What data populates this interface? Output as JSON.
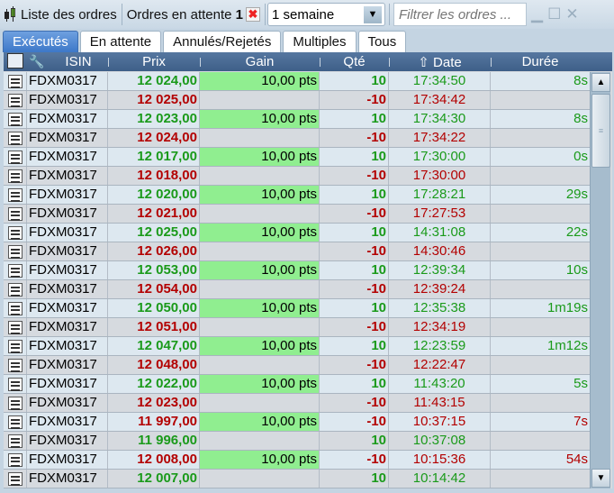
{
  "toolbar": {
    "title": "Liste des ordres",
    "pending_label": "Ordres en attente",
    "pending_count": "1",
    "period": "1 semaine",
    "filter_placeholder": "Filtrer les ordres ..."
  },
  "tabs": [
    {
      "label": "Exécutés",
      "active": true
    },
    {
      "label": "En attente"
    },
    {
      "label": "Annulés/Rejetés"
    },
    {
      "label": "Multiples"
    },
    {
      "label": "Tous"
    }
  ],
  "columns": {
    "isin": "ISIN",
    "prix": "Prix",
    "gain": "Gain",
    "qte": "Qté",
    "date": "Date",
    "duree": "Durée"
  },
  "sort": {
    "column": "Date",
    "direction": "up"
  },
  "colors": {
    "green": "#1a9a1a",
    "red": "#b30000",
    "gain_bg": "#90ee90",
    "header": "#4a6a94",
    "active_tab": "#4a84d0"
  },
  "rows": [
    {
      "isin": "FDXM0317",
      "prix": "12 024,00",
      "pc": "g",
      "gain": "10,00 pts",
      "qte": "10",
      "qc": "g",
      "date": "17:34:50",
      "dc": "g",
      "duree": "8s"
    },
    {
      "isin": "FDXM0317",
      "prix": "12 025,00",
      "pc": "r",
      "gain": "",
      "qte": "-10",
      "qc": "r",
      "date": "17:34:42",
      "dc": "r",
      "duree": ""
    },
    {
      "isin": "FDXM0317",
      "prix": "12 023,00",
      "pc": "g",
      "gain": "10,00 pts",
      "qte": "10",
      "qc": "g",
      "date": "17:34:30",
      "dc": "g",
      "duree": "8s"
    },
    {
      "isin": "FDXM0317",
      "prix": "12 024,00",
      "pc": "r",
      "gain": "",
      "qte": "-10",
      "qc": "r",
      "date": "17:34:22",
      "dc": "r",
      "duree": ""
    },
    {
      "isin": "FDXM0317",
      "prix": "12 017,00",
      "pc": "g",
      "gain": "10,00 pts",
      "qte": "10",
      "qc": "g",
      "date": "17:30:00",
      "dc": "g",
      "duree": "0s"
    },
    {
      "isin": "FDXM0317",
      "prix": "12 018,00",
      "pc": "r",
      "gain": "",
      "qte": "-10",
      "qc": "r",
      "date": "17:30:00",
      "dc": "r",
      "duree": ""
    },
    {
      "isin": "FDXM0317",
      "prix": "12 020,00",
      "pc": "g",
      "gain": "10,00 pts",
      "qte": "10",
      "qc": "g",
      "date": "17:28:21",
      "dc": "g",
      "duree": "29s"
    },
    {
      "isin": "FDXM0317",
      "prix": "12 021,00",
      "pc": "r",
      "gain": "",
      "qte": "-10",
      "qc": "r",
      "date": "17:27:53",
      "dc": "r",
      "duree": ""
    },
    {
      "isin": "FDXM0317",
      "prix": "12 025,00",
      "pc": "g",
      "gain": "10,00 pts",
      "qte": "10",
      "qc": "g",
      "date": "14:31:08",
      "dc": "g",
      "duree": "22s"
    },
    {
      "isin": "FDXM0317",
      "prix": "12 026,00",
      "pc": "r",
      "gain": "",
      "qte": "-10",
      "qc": "r",
      "date": "14:30:46",
      "dc": "r",
      "duree": ""
    },
    {
      "isin": "FDXM0317",
      "prix": "12 053,00",
      "pc": "g",
      "gain": "10,00 pts",
      "qte": "10",
      "qc": "g",
      "date": "12:39:34",
      "dc": "g",
      "duree": "10s"
    },
    {
      "isin": "FDXM0317",
      "prix": "12 054,00",
      "pc": "r",
      "gain": "",
      "qte": "-10",
      "qc": "r",
      "date": "12:39:24",
      "dc": "r",
      "duree": ""
    },
    {
      "isin": "FDXM0317",
      "prix": "12 050,00",
      "pc": "g",
      "gain": "10,00 pts",
      "qte": "10",
      "qc": "g",
      "date": "12:35:38",
      "dc": "g",
      "duree": "1m19s"
    },
    {
      "isin": "FDXM0317",
      "prix": "12 051,00",
      "pc": "r",
      "gain": "",
      "qte": "-10",
      "qc": "r",
      "date": "12:34:19",
      "dc": "r",
      "duree": ""
    },
    {
      "isin": "FDXM0317",
      "prix": "12 047,00",
      "pc": "g",
      "gain": "10,00 pts",
      "qte": "10",
      "qc": "g",
      "date": "12:23:59",
      "dc": "g",
      "duree": "1m12s"
    },
    {
      "isin": "FDXM0317",
      "prix": "12 048,00",
      "pc": "r",
      "gain": "",
      "qte": "-10",
      "qc": "r",
      "date": "12:22:47",
      "dc": "r",
      "duree": ""
    },
    {
      "isin": "FDXM0317",
      "prix": "12 022,00",
      "pc": "g",
      "gain": "10,00 pts",
      "qte": "10",
      "qc": "g",
      "date": "11:43:20",
      "dc": "g",
      "duree": "5s"
    },
    {
      "isin": "FDXM0317",
      "prix": "12 023,00",
      "pc": "r",
      "gain": "",
      "qte": "-10",
      "qc": "r",
      "date": "11:43:15",
      "dc": "r",
      "duree": ""
    },
    {
      "isin": "FDXM0317",
      "prix": "11 997,00",
      "pc": "r",
      "gain": "10,00 pts",
      "qte": "-10",
      "qc": "r",
      "date": "10:37:15",
      "dc": "r",
      "duree": "7s"
    },
    {
      "isin": "FDXM0317",
      "prix": "11 996,00",
      "pc": "g",
      "gain": "",
      "qte": "10",
      "qc": "g",
      "date": "10:37:08",
      "dc": "g",
      "duree": ""
    },
    {
      "isin": "FDXM0317",
      "prix": "12 008,00",
      "pc": "r",
      "gain": "10,00 pts",
      "qte": "-10",
      "qc": "r",
      "date": "10:15:36",
      "dc": "r",
      "duree": "54s"
    },
    {
      "isin": "FDXM0317",
      "prix": "12 007,00",
      "pc": "g",
      "gain": "",
      "qte": "10",
      "qc": "g",
      "date": "10:14:42",
      "dc": "g",
      "duree": ""
    }
  ]
}
